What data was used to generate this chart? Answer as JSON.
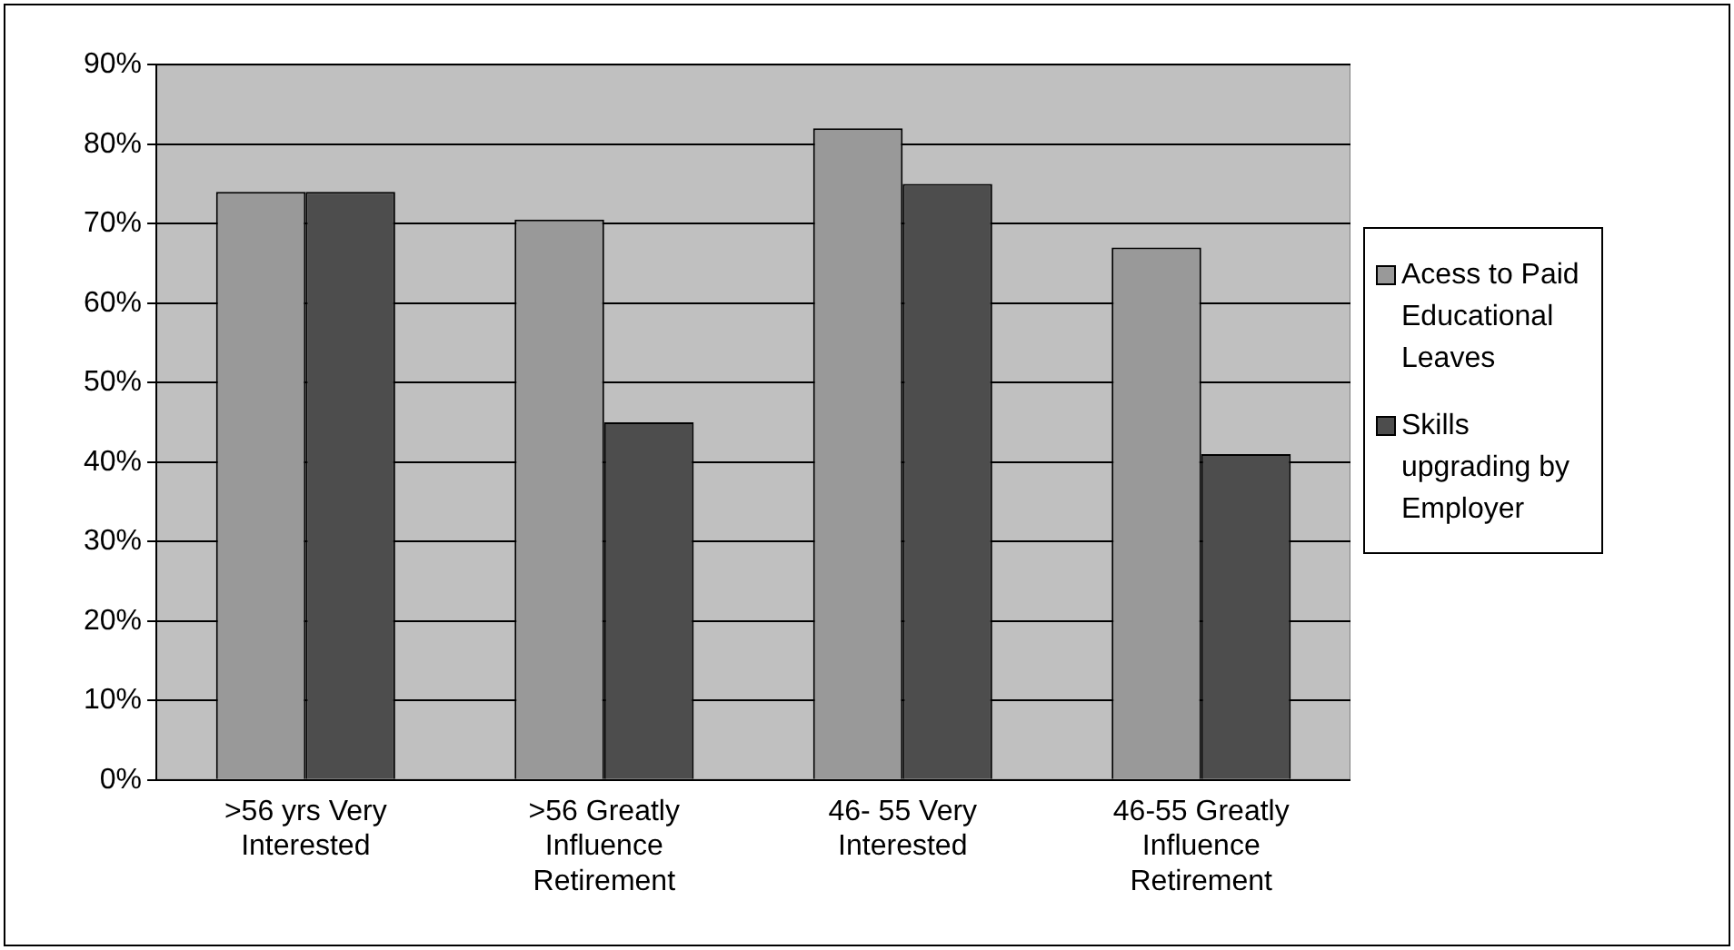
{
  "chart_data": {
    "type": "bar",
    "categories": [
      ">56 yrs Very Interested",
      ">56 Greatly Influence Retirement",
      "46- 55 Very Interested",
      "46-55 Greatly Influence Retirement"
    ],
    "series": [
      {
        "name": "Acess to Paid Educational Leaves",
        "color": "#999999",
        "values": [
          74,
          70.5,
          82,
          67
        ]
      },
      {
        "name": "Skills upgrading by Employer",
        "color": "#4d4d4d",
        "values": [
          74,
          45,
          75,
          41
        ]
      }
    ],
    "ylim": [
      0,
      90
    ],
    "yticks": [
      {
        "value": 0,
        "label": "0%"
      },
      {
        "value": 10,
        "label": "10%"
      },
      {
        "value": 20,
        "label": "20%"
      },
      {
        "value": 30,
        "label": "30%"
      },
      {
        "value": 40,
        "label": "40%"
      },
      {
        "value": 50,
        "label": "50%"
      },
      {
        "value": 60,
        "label": "60%"
      },
      {
        "value": 70,
        "label": "70%"
      },
      {
        "value": 80,
        "label": "80%"
      },
      {
        "value": 90,
        "label": "90%"
      }
    ],
    "grid": "y",
    "legend": "right"
  }
}
